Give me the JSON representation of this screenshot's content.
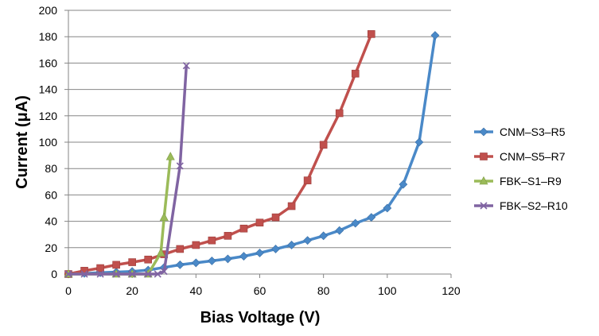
{
  "chart_data": {
    "type": "line",
    "title": "",
    "xlabel": "Bias Voltage (V)",
    "ylabel": "Current (μA)",
    "xlim": [
      0,
      120
    ],
    "ylim": [
      0,
      200
    ],
    "xticks": [
      0,
      20,
      40,
      60,
      80,
      100,
      120
    ],
    "yticks": [
      0,
      20,
      40,
      60,
      80,
      100,
      120,
      140,
      160,
      180,
      200
    ],
    "xtick_labels": [
      "0",
      "20",
      "40",
      "60",
      "80",
      "100",
      "120"
    ],
    "ytick_labels": [
      "0",
      "20",
      "40",
      "60",
      "80",
      "100",
      "120",
      "140",
      "160",
      "180",
      "200"
    ],
    "grid": "horizontal",
    "legend_position": "right",
    "series": [
      {
        "name": "CNM–S3–R5",
        "color": "#4a89c8",
        "marker": "diamond",
        "x": [
          0,
          5,
          10,
          15,
          20,
          25,
          30,
          35,
          40,
          45,
          50,
          55,
          60,
          65,
          70,
          75,
          80,
          85,
          90,
          95,
          100,
          105,
          110,
          115
        ],
        "y": [
          0,
          0.5,
          1,
          1.5,
          2,
          3,
          5,
          7,
          8.5,
          10,
          11.5,
          13.5,
          16,
          19,
          22,
          25.5,
          29,
          33,
          38.5,
          43,
          50,
          68,
          100,
          181
        ]
      },
      {
        "name": "CNM–S5–R7",
        "color": "#c0504d",
        "marker": "square",
        "x": [
          0,
          5,
          10,
          15,
          20,
          25,
          30,
          35,
          40,
          45,
          50,
          55,
          60,
          65,
          70,
          75,
          80,
          85,
          90,
          95
        ],
        "y": [
          0,
          2.5,
          4.5,
          7,
          9,
          11,
          15,
          19,
          22,
          25.5,
          29,
          34.5,
          39,
          43,
          51.5,
          71,
          98,
          122,
          152,
          182
        ]
      },
      {
        "name": "FBK–S1–R9",
        "color": "#9bbb59",
        "marker": "triangle",
        "x": [
          0,
          15,
          20,
          25,
          29,
          30,
          32
        ],
        "y": [
          0,
          0,
          0,
          0,
          16,
          43,
          89
        ]
      },
      {
        "name": "FBK–S2–R10",
        "color": "#8064a2",
        "marker": "x",
        "x": [
          0,
          5,
          10,
          15,
          20,
          25,
          28,
          30,
          35,
          37
        ],
        "y": [
          0,
          0,
          0,
          0,
          0,
          0,
          0,
          2,
          82,
          158
        ]
      }
    ]
  }
}
